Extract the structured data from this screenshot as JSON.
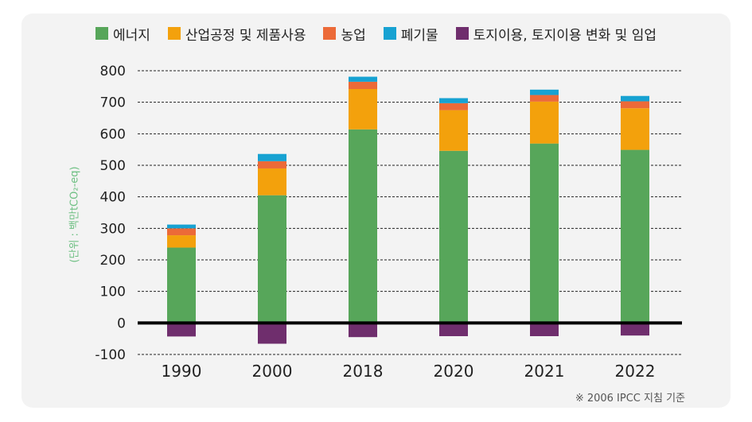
{
  "chart_data": {
    "type": "bar",
    "stacked": true,
    "categories": [
      "1990",
      "2000",
      "2018",
      "2020",
      "2021",
      "2022"
    ],
    "series": [
      {
        "name": "에너지",
        "color": "#57a65a",
        "values": [
          239,
          405,
          614,
          546,
          569,
          549
        ]
      },
      {
        "name": "산업공정 및 제품사용",
        "color": "#f3a10c",
        "values": [
          39,
          85,
          128,
          129,
          133,
          132
        ]
      },
      {
        "name": "농업",
        "color": "#ec6a38",
        "values": [
          22,
          23,
          23,
          22,
          21,
          22
        ]
      },
      {
        "name": "폐기물",
        "color": "#17a2d2",
        "values": [
          12,
          23,
          16,
          16,
          17,
          17
        ]
      },
      {
        "name": "토지이용, 토지이용 변화 및 임업",
        "color": "#6f2e6d",
        "values": [
          -43,
          -66,
          -45,
          -42,
          -42,
          -40
        ]
      }
    ],
    "ylim": [
      -100,
      800
    ],
    "yticks": [
      -100,
      0,
      100,
      200,
      300,
      400,
      500,
      600,
      700,
      800
    ],
    "ylabel": "(단위 : 백만tCO₂-eq)",
    "grid": "horizontal-dashed",
    "legend": "top-center",
    "note": "※ 2006 IPCC 지침 기준"
  }
}
